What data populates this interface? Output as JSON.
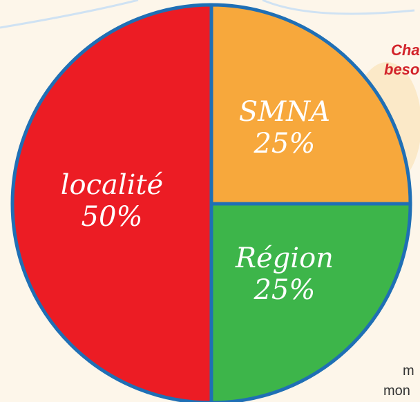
{
  "chart_data": {
    "type": "pie",
    "categories": [
      "SMNA",
      "Région",
      "localité"
    ],
    "values": [
      25,
      25,
      50
    ],
    "value_labels": [
      "25%",
      "25%",
      "50%"
    ],
    "colors": [
      "#f7a83c",
      "#3db54a",
      "#ec1c24"
    ],
    "annotations": [
      "Cha",
      "beso",
      "m",
      "mon"
    ]
  }
}
